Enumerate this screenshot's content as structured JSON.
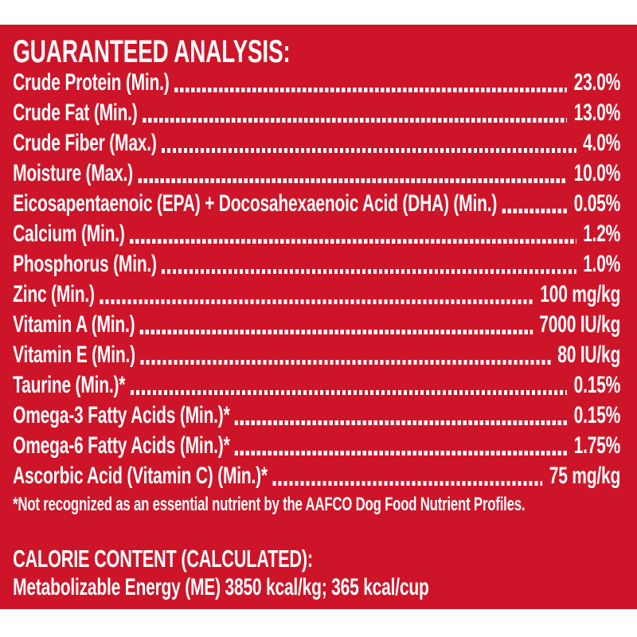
{
  "colors": {
    "panel_background": "#CE1428",
    "text": "#FFFFFF"
  },
  "guaranteed_analysis": {
    "title": "GUARANTEED ANALYSIS:",
    "rows": [
      {
        "label": "Crude Protein (Min.)",
        "value": "23.0%"
      },
      {
        "label": "Crude Fat (Min.)",
        "value": "13.0%"
      },
      {
        "label": "Crude Fiber (Max.)",
        "value": "4.0%"
      },
      {
        "label": "Moisture (Max.)",
        "value": "10.0%"
      },
      {
        "label": "Eicosapentaenoic (EPA) + Docosahexaenoic Acid (DHA) (Min.)",
        "value": "0.05%"
      },
      {
        "label": "Calcium (Min.)",
        "value": "1.2%"
      },
      {
        "label": "Phosphorus (Min.)",
        "value": "1.0%"
      },
      {
        "label": "Zinc (Min.)",
        "value": "100 mg/kg"
      },
      {
        "label": "Vitamin A (Min.)",
        "value": "7000 IU/kg"
      },
      {
        "label": "Vitamin E (Min.)",
        "value": "80 IU/kg"
      },
      {
        "label": "Taurine (Min.)*",
        "value": "0.15%"
      },
      {
        "label": "Omega-3 Fatty Acids (Min.)*",
        "value": "0.15%"
      },
      {
        "label": "Omega-6 Fatty Acids (Min.)*",
        "value": "1.75%"
      },
      {
        "label": "Ascorbic Acid (Vitamin C) (Min.)*",
        "value": "75 mg/kg"
      }
    ],
    "footnote": "*Not recognized as an essential nutrient by the AAFCO Dog Food Nutrient Profiles."
  },
  "calorie_content": {
    "title": "CALORIE CONTENT (CALCULATED):",
    "line": "Metabolizable Energy (ME) 3850 kcal/kg;  365 kcal/cup"
  }
}
